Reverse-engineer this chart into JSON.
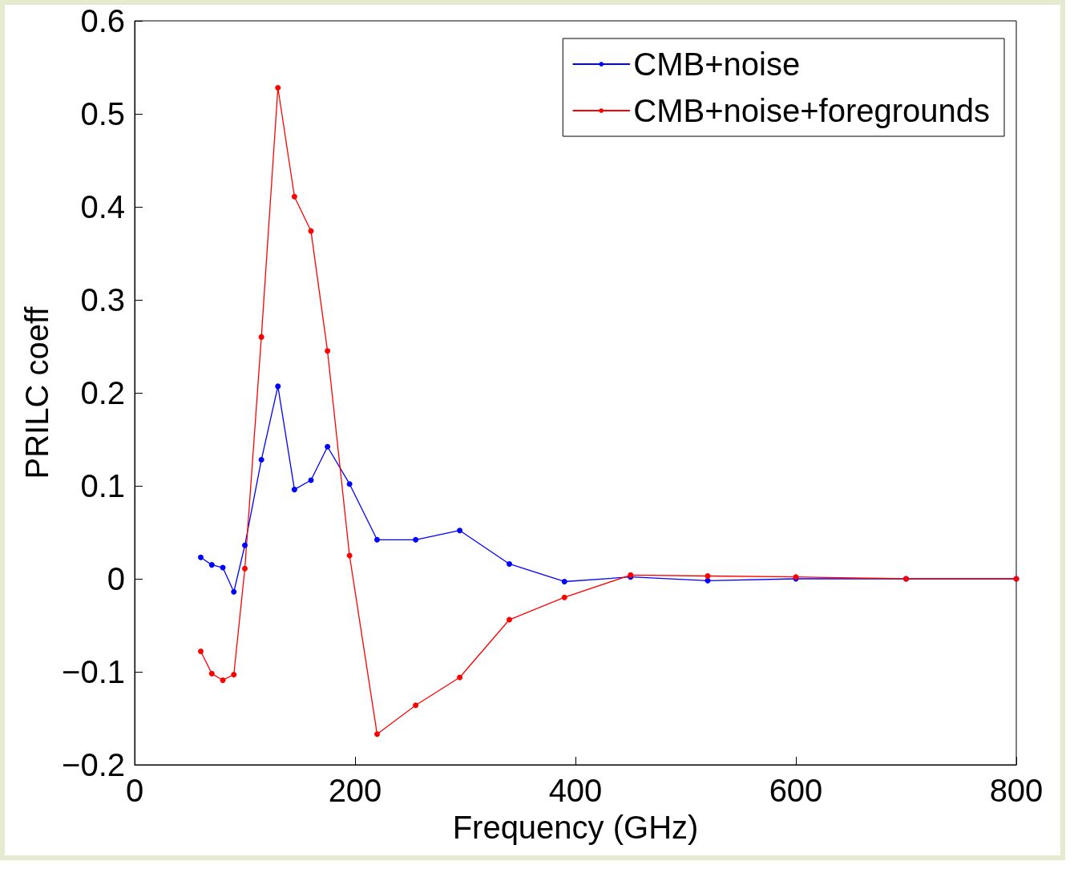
{
  "chart_data": {
    "type": "line",
    "xlabel": "Frequency (GHz)",
    "ylabel": "PRILC coeff",
    "x": [
      60,
      70,
      80,
      90,
      100,
      115,
      130,
      145,
      160,
      175,
      195,
      220,
      255,
      295,
      340,
      390,
      450,
      520,
      600,
      700,
      800
    ],
    "series": [
      {
        "name": "CMB+noise",
        "color": "#0000ff",
        "values": [
          0.023,
          0.015,
          0.012,
          -0.014,
          0.036,
          0.128,
          0.207,
          0.096,
          0.106,
          0.142,
          0.102,
          0.042,
          0.042,
          0.052,
          0.016,
          -0.003,
          0.002,
          -0.002,
          0.0,
          0.0,
          0.0
        ]
      },
      {
        "name": "CMB+noise+foregrounds",
        "color": "#ff0000",
        "values": [
          -0.078,
          -0.102,
          -0.109,
          -0.103,
          0.011,
          0.26,
          0.528,
          0.411,
          0.374,
          0.245,
          0.025,
          -0.167,
          -0.136,
          -0.106,
          -0.044,
          -0.02,
          0.004,
          0.003,
          0.002,
          0.0,
          0.0
        ]
      }
    ],
    "xlim": [
      0,
      800
    ],
    "xticks": [
      0,
      200,
      400,
      600,
      800
    ],
    "ylim": [
      -0.2,
      0.6
    ],
    "yticks": [
      {
        "value": -0.2,
        "label": "−0.2"
      },
      {
        "value": -0.1,
        "label": "−0.1"
      },
      0,
      0.1,
      0.2,
      0.3,
      0.4,
      0.5,
      0.6
    ],
    "grid": false,
    "legend": "top right",
    "marker": "circle",
    "line_style": "solid"
  }
}
